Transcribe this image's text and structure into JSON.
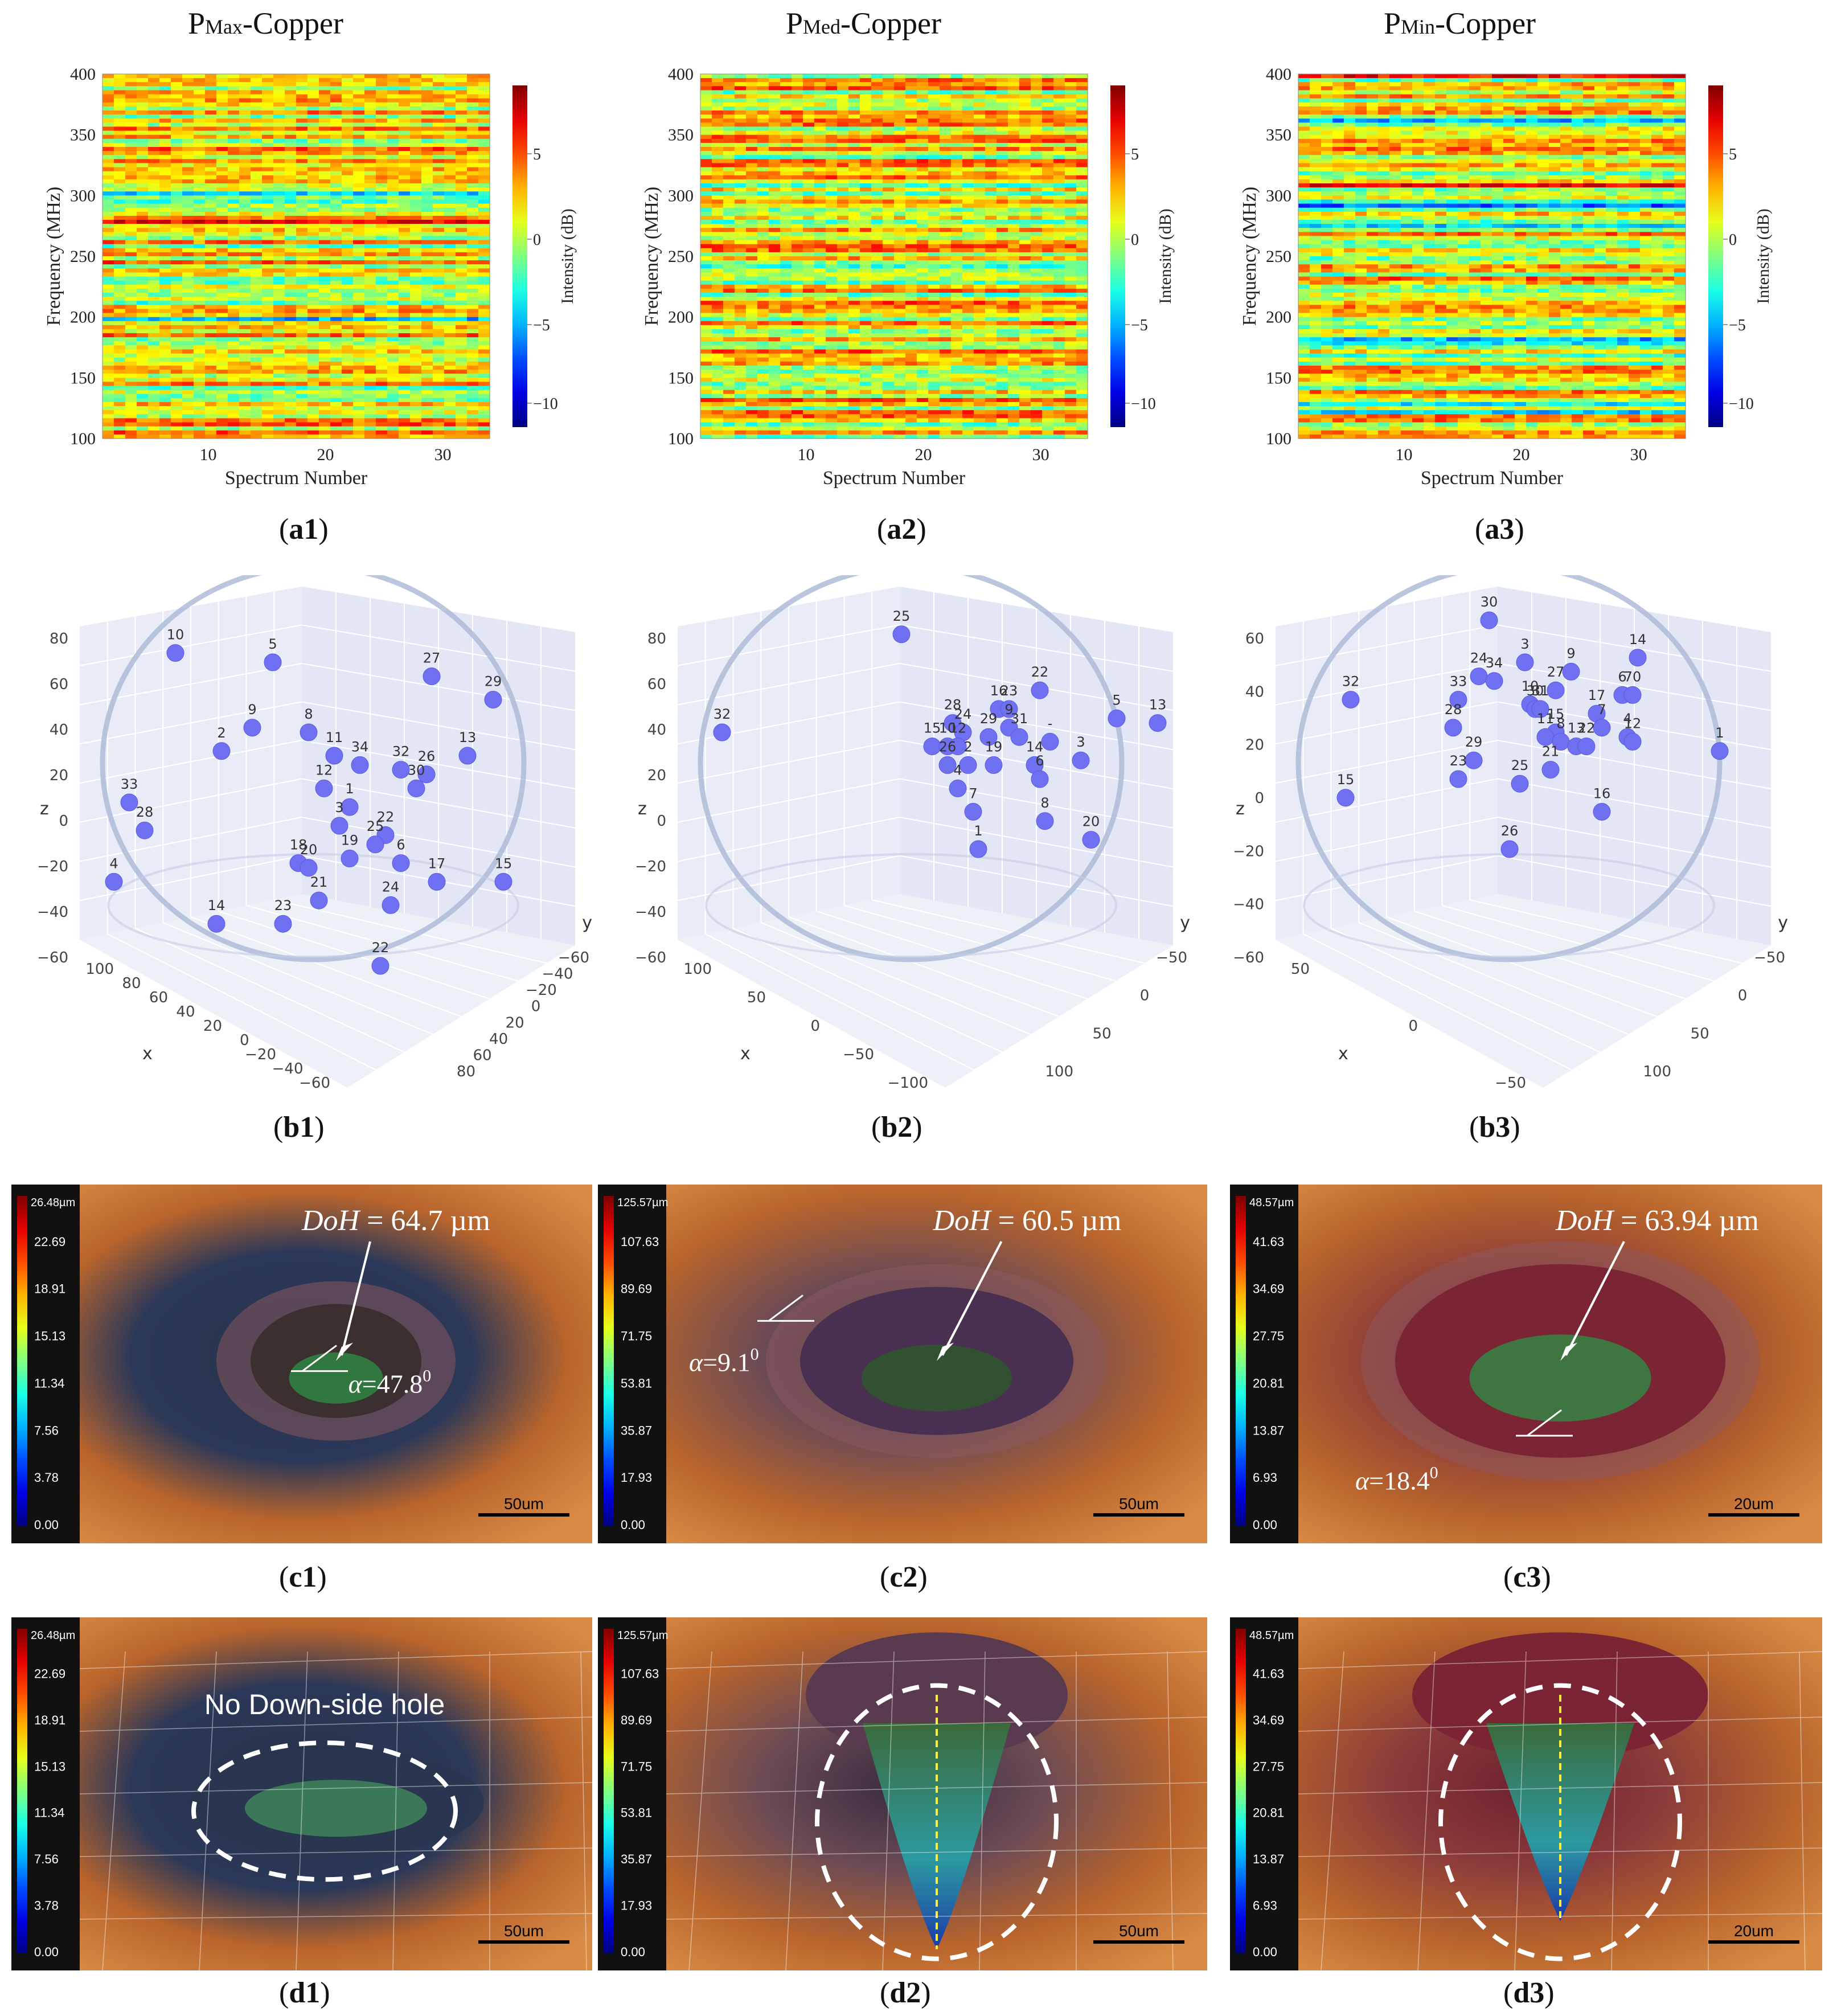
{
  "figure": {
    "row_a": {
      "panels": [
        {
          "id": "a1",
          "title_main": "P",
          "title_sub": "Max",
          "title_rest": "-Copper",
          "caption": "a1",
          "xlabel": "Spectrum Number",
          "ylabel": "Frequency (MHz)",
          "cbar_label": "Intensity (dB)",
          "yticks": [
            "100",
            "150",
            "200",
            "250",
            "300",
            "350",
            "400"
          ],
          "xticks": [
            "10",
            "20",
            "30"
          ],
          "cticks": [
            "5",
            "0",
            "−5",
            "−10"
          ]
        },
        {
          "id": "a2",
          "title_main": "P",
          "title_sub": "Med",
          "title_rest": "-Copper",
          "caption": "a2",
          "xlabel": "Spectrum Number",
          "ylabel": "Frequency (MHz)",
          "cbar_label": "Intensity (dB)",
          "yticks": [
            "100",
            "150",
            "200",
            "250",
            "300",
            "350",
            "400"
          ],
          "xticks": [
            "10",
            "20",
            "30"
          ],
          "cticks": [
            "5",
            "0",
            "−5",
            "−10"
          ]
        },
        {
          "id": "a3",
          "title_main": "P",
          "title_sub": "Min",
          "title_rest": "-Copper",
          "caption": "a3",
          "xlabel": "Spectrum Number",
          "ylabel": "Frequency (MHz)",
          "cbar_label": "Intensity (dB)",
          "yticks": [
            "100",
            "150",
            "200",
            "250",
            "300",
            "350",
            "400"
          ],
          "xticks": [
            "10",
            "20",
            "30"
          ],
          "cticks": [
            "5",
            "0",
            "−5",
            "−10"
          ]
        }
      ]
    },
    "row_b": {
      "panels": [
        {
          "id": "b1",
          "caption": "b1",
          "axis_x": "x",
          "axis_y": "y",
          "axis_z": "z",
          "zticks": [
            "80",
            "60",
            "40",
            "20",
            "0",
            "−20",
            "−40",
            "−60"
          ],
          "xticks": [
            "100",
            "80",
            "60",
            "40",
            "20",
            "0",
            "−20",
            "−40",
            "−60"
          ],
          "yticks": [
            "−60",
            "−40",
            "−20",
            "0",
            "20",
            "40",
            "60",
            "80"
          ],
          "points": [
            {
              "label": "10",
              "x": 0.22,
              "y": 0.13
            },
            {
              "label": "5",
              "x": 0.41,
              "y": 0.15
            },
            {
              "label": "27",
              "x": 0.72,
              "y": 0.18
            },
            {
              "label": "29",
              "x": 0.84,
              "y": 0.23
            },
            {
              "label": "9",
              "x": 0.37,
              "y": 0.29
            },
            {
              "label": "8",
              "x": 0.48,
              "y": 0.3
            },
            {
              "label": "2",
              "x": 0.31,
              "y": 0.34
            },
            {
              "label": "11",
              "x": 0.53,
              "y": 0.35
            },
            {
              "label": "34",
              "x": 0.58,
              "y": 0.37
            },
            {
              "label": "32",
              "x": 0.66,
              "y": 0.38
            },
            {
              "label": "26",
              "x": 0.71,
              "y": 0.39
            },
            {
              "label": "13",
              "x": 0.79,
              "y": 0.35
            },
            {
              "label": "12",
              "x": 0.51,
              "y": 0.42
            },
            {
              "label": "30",
              "x": 0.69,
              "y": 0.42
            },
            {
              "label": "33",
              "x": 0.13,
              "y": 0.45
            },
            {
              "label": "28",
              "x": 0.16,
              "y": 0.51
            },
            {
              "label": "1",
              "x": 0.56,
              "y": 0.46
            },
            {
              "label": "3",
              "x": 0.54,
              "y": 0.5
            },
            {
              "label": "22",
              "x": 0.63,
              "y": 0.52
            },
            {
              "label": "25",
              "x": 0.61,
              "y": 0.54
            },
            {
              "label": "18",
              "x": 0.46,
              "y": 0.58
            },
            {
              "label": "20",
              "x": 0.48,
              "y": 0.59
            },
            {
              "label": "19",
              "x": 0.56,
              "y": 0.57
            },
            {
              "label": "6",
              "x": 0.66,
              "y": 0.58
            },
            {
              "label": "17",
              "x": 0.73,
              "y": 0.62
            },
            {
              "label": "15",
              "x": 0.86,
              "y": 0.62
            },
            {
              "label": "4",
              "x": 0.1,
              "y": 0.62
            },
            {
              "label": "21",
              "x": 0.5,
              "y": 0.66
            },
            {
              "label": "24",
              "x": 0.64,
              "y": 0.67
            },
            {
              "label": "14",
              "x": 0.3,
              "y": 0.71
            },
            {
              "label": "23",
              "x": 0.43,
              "y": 0.71
            },
            {
              "label": "22",
              "x": 0.62,
              "y": 0.8
            }
          ]
        },
        {
          "id": "b2",
          "caption": "b2",
          "axis_x": "x",
          "axis_y": "y",
          "axis_z": "z",
          "zticks": [
            "80",
            "60",
            "40",
            "20",
            "0",
            "−20",
            "−40",
            "−60"
          ],
          "xticks": [
            "100",
            "50",
            "0",
            "−50",
            "−100"
          ],
          "yticks": [
            "−50",
            "0",
            "50",
            "100"
          ],
          "points": [
            {
              "label": "25",
              "x": 0.47,
              "y": 0.09
            },
            {
              "label": "32",
              "x": 0.12,
              "y": 0.3
            },
            {
              "label": "22",
              "x": 0.74,
              "y": 0.21
            },
            {
              "label": "16",
              "x": 0.66,
              "y": 0.25
            },
            {
              "label": "23",
              "x": 0.68,
              "y": 0.25
            },
            {
              "label": "5",
              "x": 0.89,
              "y": 0.27
            },
            {
              "label": "13",
              "x": 0.97,
              "y": 0.28
            },
            {
              "label": "28",
              "x": 0.57,
              "y": 0.28
            },
            {
              "label": "24",
              "x": 0.59,
              "y": 0.3
            },
            {
              "label": "9",
              "x": 0.68,
              "y": 0.29
            },
            {
              "label": "29",
              "x": 0.64,
              "y": 0.31
            },
            {
              "label": "31",
              "x": 0.7,
              "y": 0.31
            },
            {
              "label": "-",
              "x": 0.76,
              "y": 0.32
            },
            {
              "label": "15",
              "x": 0.53,
              "y": 0.33
            },
            {
              "label": "10",
              "x": 0.56,
              "y": 0.33
            },
            {
              "label": "12",
              "x": 0.58,
              "y": 0.33
            },
            {
              "label": "3",
              "x": 0.82,
              "y": 0.36
            },
            {
              "label": "26",
              "x": 0.56,
              "y": 0.37
            },
            {
              "label": "2",
              "x": 0.6,
              "y": 0.37
            },
            {
              "label": "19",
              "x": 0.65,
              "y": 0.37
            },
            {
              "label": "14",
              "x": 0.73,
              "y": 0.37
            },
            {
              "label": "6",
              "x": 0.74,
              "y": 0.4
            },
            {
              "label": "4",
              "x": 0.58,
              "y": 0.42
            },
            {
              "label": "7",
              "x": 0.61,
              "y": 0.47
            },
            {
              "label": "8",
              "x": 0.75,
              "y": 0.49
            },
            {
              "label": "20",
              "x": 0.84,
              "y": 0.53
            },
            {
              "label": "1",
              "x": 0.62,
              "y": 0.55
            }
          ]
        },
        {
          "id": "b3",
          "caption": "b3",
          "axis_x": "x",
          "axis_y": "y",
          "axis_z": "z",
          "zticks": [
            "60",
            "40",
            "20",
            "0",
            "−20",
            "−40",
            "−60"
          ],
          "xticks": [
            "50",
            "0",
            "−50"
          ],
          "yticks": [
            "−50",
            "0",
            "50",
            "100"
          ],
          "points": [
            {
              "label": "30",
              "x": 0.45,
              "y": 0.06
            },
            {
              "label": "14",
              "x": 0.74,
              "y": 0.14
            },
            {
              "label": "3",
              "x": 0.52,
              "y": 0.15
            },
            {
              "label": "9",
              "x": 0.61,
              "y": 0.17
            },
            {
              "label": "24",
              "x": 0.43,
              "y": 0.18
            },
            {
              "label": "34",
              "x": 0.46,
              "y": 0.19
            },
            {
              "label": "27",
              "x": 0.58,
              "y": 0.21
            },
            {
              "label": "6",
              "x": 0.71,
              "y": 0.22
            },
            {
              "label": "70",
              "x": 0.73,
              "y": 0.22
            },
            {
              "label": "32",
              "x": 0.18,
              "y": 0.23
            },
            {
              "label": "33",
              "x": 0.39,
              "y": 0.23
            },
            {
              "label": "10",
              "x": 0.53,
              "y": 0.24
            },
            {
              "label": "30",
              "x": 0.54,
              "y": 0.25
            },
            {
              "label": "31",
              "x": 0.55,
              "y": 0.25
            },
            {
              "label": "17",
              "x": 0.66,
              "y": 0.26
            },
            {
              "label": "28",
              "x": 0.38,
              "y": 0.29
            },
            {
              "label": "15",
              "x": 0.58,
              "y": 0.3
            },
            {
              "label": "11",
              "x": 0.56,
              "y": 0.31
            },
            {
              "label": "7",
              "x": 0.67,
              "y": 0.29
            },
            {
              "label": "4",
              "x": 0.72,
              "y": 0.31
            },
            {
              "label": "12",
              "x": 0.73,
              "y": 0.32
            },
            {
              "label": "8",
              "x": 0.59,
              "y": 0.32
            },
            {
              "label": "13",
              "x": 0.62,
              "y": 0.33
            },
            {
              "label": "22",
              "x": 0.64,
              "y": 0.33
            },
            {
              "label": "29",
              "x": 0.42,
              "y": 0.36
            },
            {
              "label": "21",
              "x": 0.57,
              "y": 0.38
            },
            {
              "label": "23",
              "x": 0.39,
              "y": 0.4
            },
            {
              "label": "25",
              "x": 0.51,
              "y": 0.41
            },
            {
              "label": "15",
              "x": 0.17,
              "y": 0.44
            },
            {
              "label": "16",
              "x": 0.67,
              "y": 0.47
            },
            {
              "label": "1",
              "x": 0.9,
              "y": 0.34
            },
            {
              "label": "26",
              "x": 0.49,
              "y": 0.55
            }
          ]
        }
      ]
    },
    "row_c": {
      "panels": [
        {
          "id": "c1",
          "caption": "c1",
          "scale_max": "26.48µm",
          "scale_ticks": [
            "22.69",
            "18.91",
            "15.13",
            "11.34",
            "7.56",
            "3.78",
            "0.00"
          ],
          "doh_label": "DoH",
          "doh_value": " = 64.7 µm",
          "alpha_label": "α",
          "alpha_value": "=47.8",
          "alpha_sup": "0",
          "scalebar": "50um"
        },
        {
          "id": "c2",
          "caption": "c2",
          "scale_max": "125.57µm",
          "scale_ticks": [
            "107.63",
            "89.69",
            "71.75",
            "53.81",
            "35.87",
            "17.93",
            "0.00"
          ],
          "doh_label": "DoH",
          "doh_value": " = 60.5 µm",
          "alpha_label": "α",
          "alpha_value": "=9.1",
          "alpha_sup": "0",
          "scalebar": "50um"
        },
        {
          "id": "c3",
          "caption": "c3",
          "scale_max": "48.57µm",
          "scale_ticks": [
            "41.63",
            "34.69",
            "27.75",
            "20.81",
            "13.87",
            "6.93",
            "0.00"
          ],
          "doh_label": "DoH",
          "doh_value": " = 63.94 µm",
          "alpha_label": "α",
          "alpha_value": "=18.4",
          "alpha_sup": "0",
          "scalebar": "20um"
        }
      ]
    },
    "row_d": {
      "panels": [
        {
          "id": "d1",
          "caption": "d1",
          "scale_max": "26.48µm",
          "scale_ticks": [
            "22.69",
            "18.91",
            "15.13",
            "11.34",
            "7.56",
            "3.78",
            "0.00"
          ],
          "note": "No Down-side hole",
          "scalebar": "50um"
        },
        {
          "id": "d2",
          "caption": "d2",
          "scale_max": "125.57µm",
          "scale_ticks": [
            "107.63",
            "89.69",
            "71.75",
            "53.81",
            "35.87",
            "17.93",
            "0.00"
          ],
          "scalebar": "50um"
        },
        {
          "id": "d3",
          "caption": "d3",
          "scale_max": "48.57µm",
          "scale_ticks": [
            "41.63",
            "34.69",
            "27.75",
            "20.81",
            "13.87",
            "6.93",
            "0.00"
          ],
          "scalebar": "20um"
        }
      ]
    }
  }
}
